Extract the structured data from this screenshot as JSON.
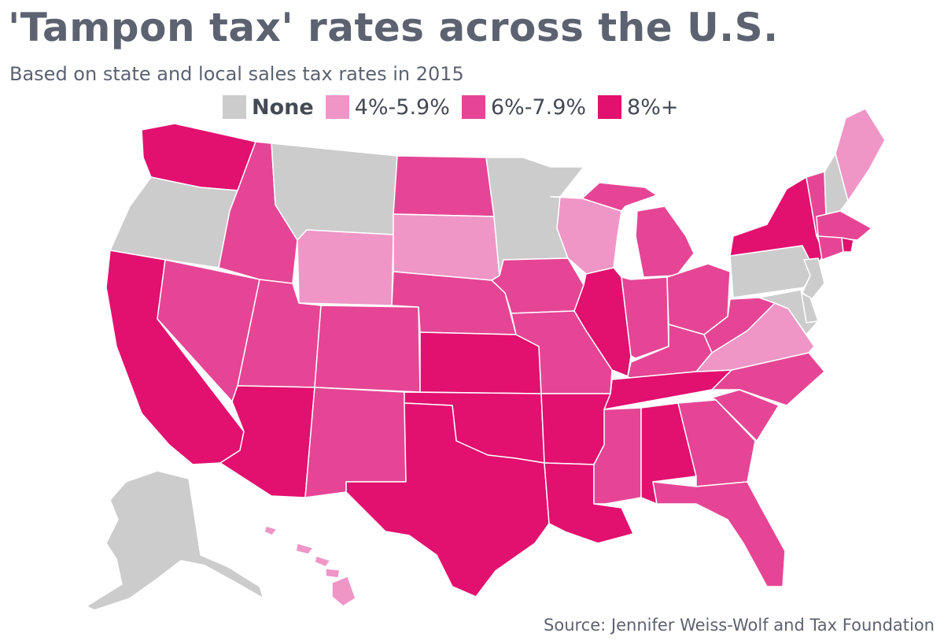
{
  "title": "'Tampon tax' rates across the U.S.",
  "subtitle": "Based on state and local sales tax rates in 2015",
  "source": "Source: Jennifer Weiss-Wolf and Tax Foundation",
  "legend": [
    {
      "label": "None",
      "color": "#cccccc"
    },
    {
      "label": "4%-5.9%",
      "color": "#ef96c7"
    },
    {
      "label": "6%-7.9%",
      "color": "#e64595"
    },
    {
      "label": "8%+",
      "color": "#e2106f"
    }
  ],
  "states": {
    "WA": "8%+",
    "OR": "None",
    "CA": "8%+",
    "NV": "6%-7.9%",
    "ID": "6%-7.9%",
    "MT": "None",
    "WY": "4%-5.9%",
    "UT": "6%-7.9%",
    "AZ": "8%+",
    "CO": "6%-7.9%",
    "NM": "6%-7.9%",
    "ND": "6%-7.9%",
    "SD": "4%-5.9%",
    "NE": "6%-7.9%",
    "KS": "8%+",
    "OK": "8%+",
    "TX": "8%+",
    "MN": "None",
    "IA": "6%-7.9%",
    "MO": "6%-7.9%",
    "AR": "8%+",
    "LA": "8%+",
    "WI": "4%-5.9%",
    "IL": "8%+",
    "MI": "6%-7.9%",
    "IN": "6%-7.9%",
    "OH": "6%-7.9%",
    "KY": "6%-7.9%",
    "TN": "8%+",
    "MS": "6%-7.9%",
    "AL": "8%+",
    "GA": "6%-7.9%",
    "FL": "6%-7.9%",
    "SC": "6%-7.9%",
    "NC": "6%-7.9%",
    "VA": "4%-5.9%",
    "WV": "6%-7.9%",
    "PA": "None",
    "NY": "8%+",
    "NJ": "None",
    "DE": "None",
    "MD": "None",
    "VT": "6%-7.9%",
    "NH": "None",
    "ME": "4%-5.9%",
    "MA": "6%-7.9%",
    "CT": "6%-7.9%",
    "RI": "8%+",
    "AK": "None",
    "HI": "4%-5.9%"
  }
}
